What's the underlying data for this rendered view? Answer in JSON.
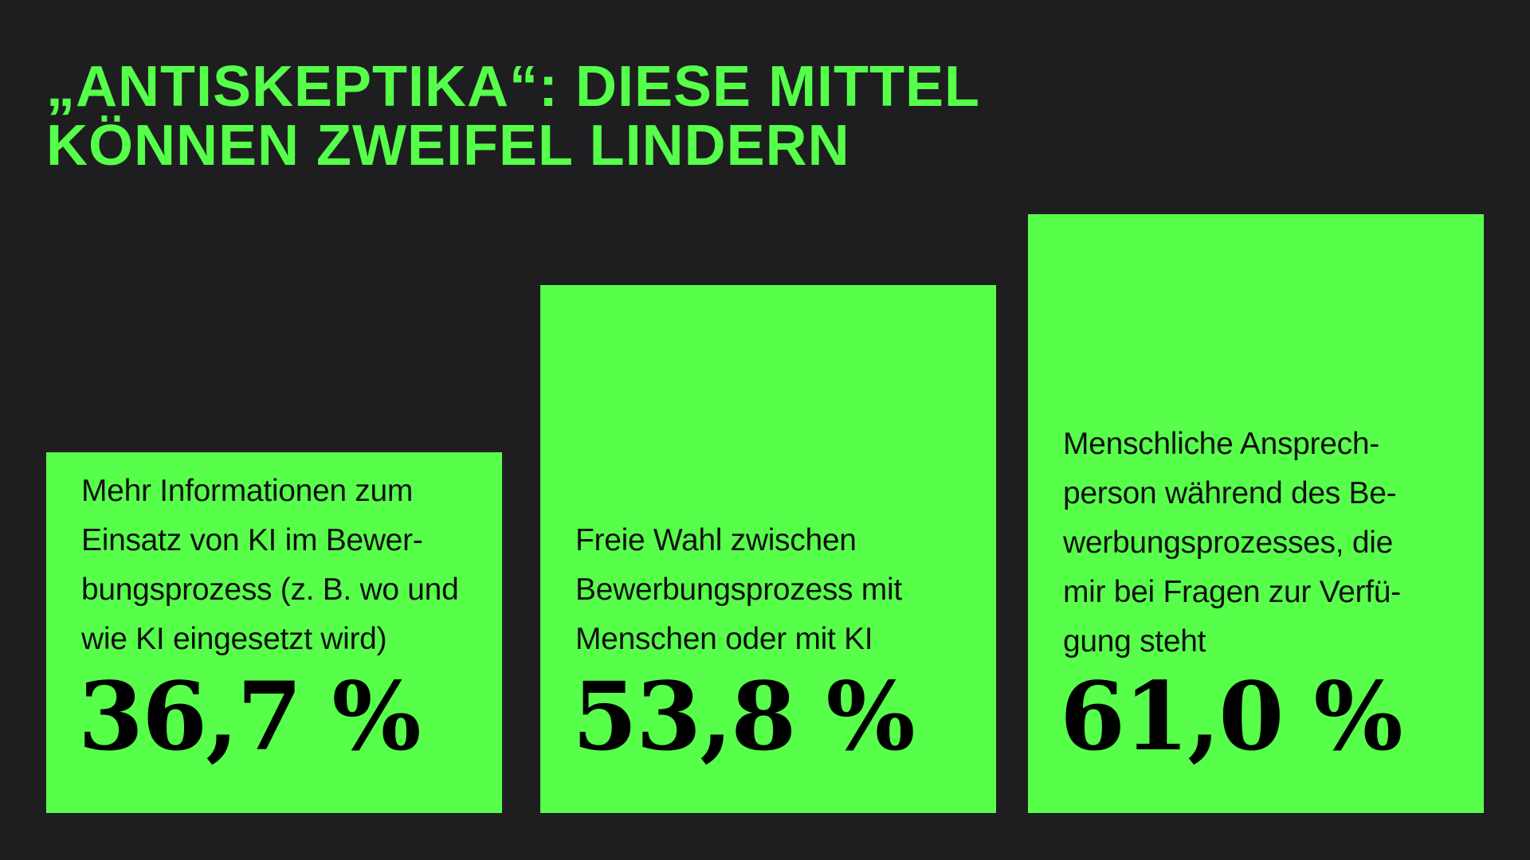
{
  "title_lines": [
    "„ANTISKEPTIKA“: DIESE MITTEL",
    "KÖNNEN ZWEIFEL LINDERN"
  ],
  "colors": {
    "background": "#1e1e20",
    "accent": "#57ff4b",
    "text_dark": "#000000"
  },
  "chart_data": {
    "type": "bar",
    "title": "„ANTISKEPTIKA“: DIESE MITTEL KÖNNEN ZWEIFEL LINDERN",
    "unit": "%",
    "ylim": [
      0,
      100
    ],
    "categories": [
      "Mehr Informationen zum Einsatz von KI im Bewerbungsprozess (z. B. wo und wie KI eingesetzt wird)",
      "Freie Wahl zwischen Bewerbungsprozess mit Menschen oder mit KI",
      "Menschliche Ansprechperson während des Bewerbungsprozesses, die mir bei Fragen zur Verfügung steht"
    ],
    "values": [
      36.7,
      53.8,
      61.0
    ],
    "value_labels": [
      "36,7 %",
      "53,8 %",
      "61,0 %"
    ],
    "category_lines": [
      [
        "Mehr Informationen zum",
        "Einsatz von KI im Bewer-",
        "bungsprozess (z. B. wo und",
        "wie KI eingesetzt wird)"
      ],
      [
        "Freie Wahl zwischen",
        "Bewerbungsprozess mit",
        "Menschen oder mit KI"
      ],
      [
        "Menschliche Ansprech-",
        "person während des Be-",
        "werbungsprozesses, die",
        "mir bei Fragen zur Verfü-",
        "gung steht"
      ]
    ]
  }
}
